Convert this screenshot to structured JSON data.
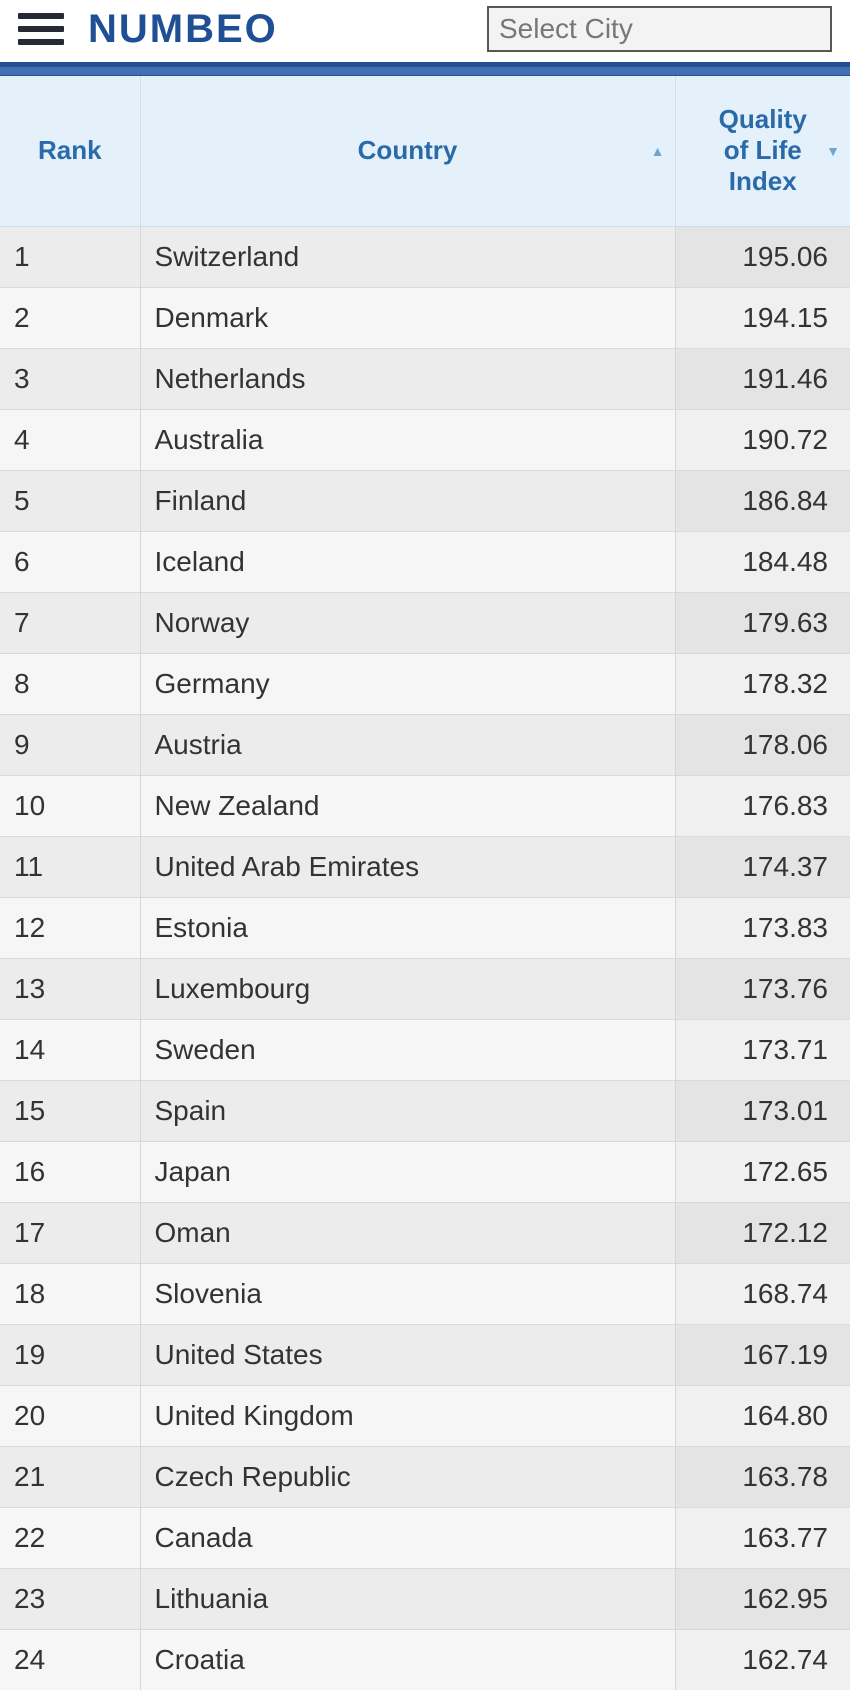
{
  "brand": "NUMBEO",
  "search": {
    "placeholder": "Select City",
    "value": ""
  },
  "colors": {
    "brand": "#1f4f94",
    "header_bg": "#e4f1fb",
    "header_text": "#2a6aa8",
    "row_odd": "#ececec",
    "row_even": "#f6f6f6",
    "index_odd": "#e4e4e4",
    "index_even": "#f0f0f0",
    "border": "#d9d9d9"
  },
  "table": {
    "columns": {
      "rank": "Rank",
      "country": "Country",
      "index_l1": "Quality",
      "index_l2": "of Life",
      "index_l3": "Index"
    },
    "sort": {
      "column": "country",
      "direction": "asc"
    },
    "rows": [
      {
        "rank": "1",
        "country": "Switzerland",
        "index": "195.06"
      },
      {
        "rank": "2",
        "country": "Denmark",
        "index": "194.15"
      },
      {
        "rank": "3",
        "country": "Netherlands",
        "index": "191.46"
      },
      {
        "rank": "4",
        "country": "Australia",
        "index": "190.72"
      },
      {
        "rank": "5",
        "country": "Finland",
        "index": "186.84"
      },
      {
        "rank": "6",
        "country": "Iceland",
        "index": "184.48"
      },
      {
        "rank": "7",
        "country": "Norway",
        "index": "179.63"
      },
      {
        "rank": "8",
        "country": "Germany",
        "index": "178.32"
      },
      {
        "rank": "9",
        "country": "Austria",
        "index": "178.06"
      },
      {
        "rank": "10",
        "country": "New Zealand",
        "index": "176.83"
      },
      {
        "rank": "11",
        "country": "United Arab Emirates",
        "index": "174.37"
      },
      {
        "rank": "12",
        "country": "Estonia",
        "index": "173.83"
      },
      {
        "rank": "13",
        "country": "Luxembourg",
        "index": "173.76"
      },
      {
        "rank": "14",
        "country": "Sweden",
        "index": "173.71"
      },
      {
        "rank": "15",
        "country": "Spain",
        "index": "173.01"
      },
      {
        "rank": "16",
        "country": "Japan",
        "index": "172.65"
      },
      {
        "rank": "17",
        "country": "Oman",
        "index": "172.12"
      },
      {
        "rank": "18",
        "country": "Slovenia",
        "index": "168.74"
      },
      {
        "rank": "19",
        "country": "United States",
        "index": "167.19"
      },
      {
        "rank": "20",
        "country": "United Kingdom",
        "index": "164.80"
      },
      {
        "rank": "21",
        "country": "Czech Republic",
        "index": "163.78"
      },
      {
        "rank": "22",
        "country": "Canada",
        "index": "163.77"
      },
      {
        "rank": "23",
        "country": "Lithuania",
        "index": "162.95"
      },
      {
        "rank": "24",
        "country": "Croatia",
        "index": "162.74"
      }
    ]
  }
}
